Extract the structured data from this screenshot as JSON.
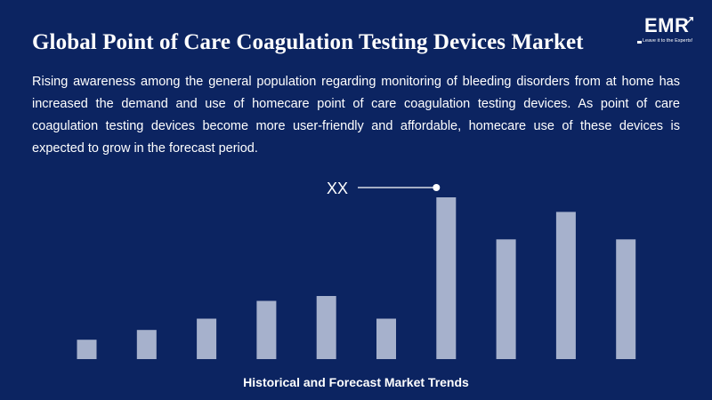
{
  "title": "Global Point of Care Coagulation Testing Devices Market",
  "description": "Rising awareness among the general population regarding monitoring of bleeding disorders from at home has increased the demand and use of homecare point of care coagulation testing devices. As point of care coagulation testing devices become more user-friendly and affordable, homecare use of these devices is expected to grow in the forecast period.",
  "logo": {
    "name": "EMR",
    "tagline": "Leave it to the Experts!"
  },
  "colors": {
    "background": "#0c2461",
    "bar": "#a6b1cc",
    "text": "#ffffff"
  },
  "chart_data": {
    "type": "bar",
    "title": "Historical and Forecast Market Trends",
    "xlabel": "",
    "ylabel": "",
    "grid": false,
    "legend": "none",
    "categories": [
      "",
      "",
      "",
      "",
      "",
      "",
      "",
      "",
      "",
      ""
    ],
    "values": [
      12,
      18,
      25,
      36,
      39,
      25,
      100,
      74,
      91,
      74
    ],
    "ylim": [
      0,
      100
    ],
    "annotation": {
      "label": "XX",
      "target_index": 6
    }
  }
}
